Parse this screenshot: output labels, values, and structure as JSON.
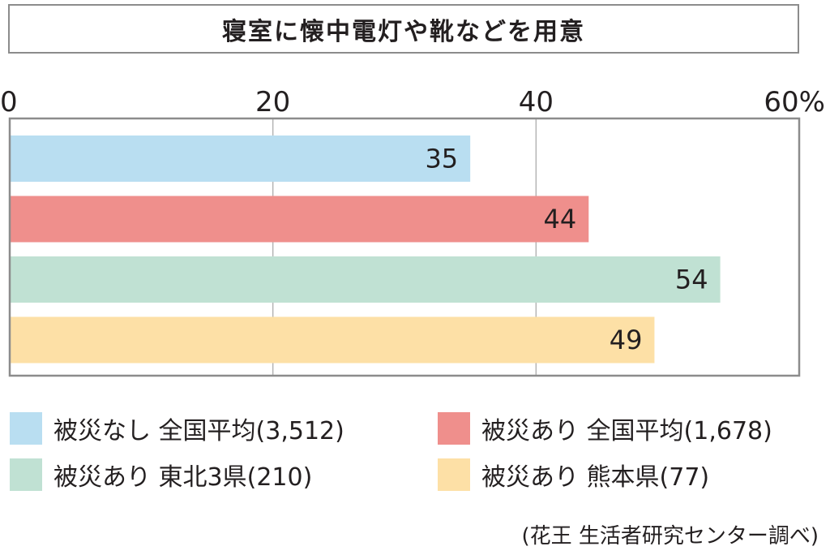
{
  "chart_data": {
    "type": "bar",
    "orientation": "horizontal",
    "title": "寝室に懐中電灯や靴などを用意",
    "xlim": [
      0,
      60
    ],
    "xticks": [
      "0",
      "20",
      "40",
      "60%"
    ],
    "grid": true,
    "series": [
      {
        "name": "被災なし 全国平均(3,512)",
        "value": 35,
        "label": "35",
        "color": "#b9def1"
      },
      {
        "name": "被災あり 全国平均(1,678)",
        "value": 44,
        "label": "44",
        "color": "#ef8f8c"
      },
      {
        "name": "被災あり 東北3県(210)",
        "value": 54,
        "label": "54",
        "color": "#c0e1d3"
      },
      {
        "name": "被災あり 熊本県(77)",
        "value": 49,
        "label": "49",
        "color": "#fde0a6"
      }
    ],
    "legend_position": "bottom",
    "source": "(花王 生活者研究センター調べ)"
  }
}
